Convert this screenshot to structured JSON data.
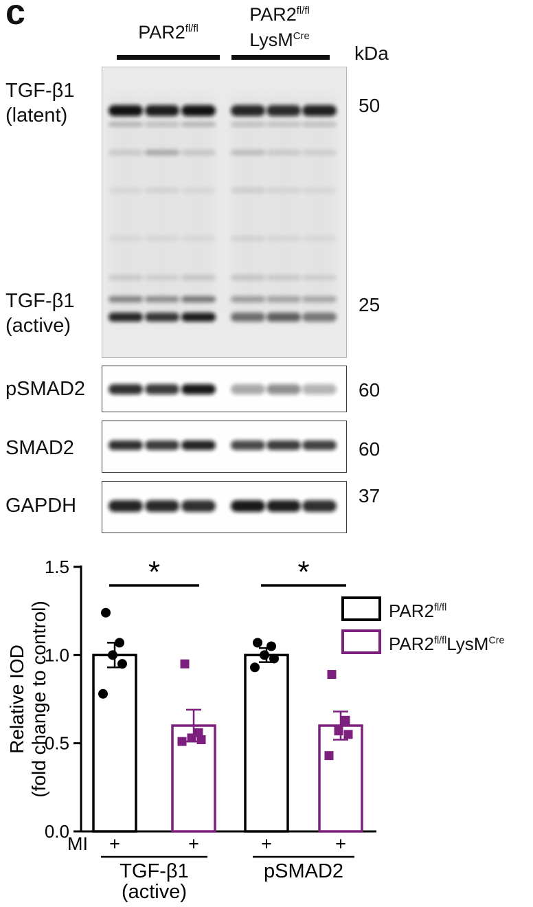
{
  "panel_label": "c",
  "blot_section": {
    "group_headers": [
      {
        "base": "PAR2",
        "sup": "fl/fl"
      },
      {
        "base": "PAR2",
        "sup": "fl/fl",
        "base2": "LysM",
        "sup2": "Cre"
      }
    ],
    "unit_label": "kDa",
    "row_labels": {
      "latent_line1": "TGF-β1",
      "latent_line2": "(latent)",
      "active_line1": "TGF-β1",
      "active_line2": "(active)",
      "psmad2": "pSMAD2",
      "smad2": "SMAD2",
      "gapdh": "GAPDH"
    },
    "molecular_weights": {
      "latent": "50",
      "active": "25",
      "psmad2": "60",
      "smad2": "60",
      "gapdh": "37"
    },
    "lanes_per_group": 3
  },
  "blots": {
    "main": {
      "rows": [
        {
          "id": "latent-band",
          "intensities": [
            0.97,
            0.92,
            0.97,
            0.88,
            0.85,
            0.9
          ]
        },
        {
          "id": "latent-echo",
          "intensities": [
            0.25,
            0.2,
            0.25,
            0.2,
            0.18,
            0.2
          ]
        },
        {
          "id": "faint-1",
          "intensities": [
            0.12,
            0.28,
            0.14,
            0.18,
            0.12,
            0.1
          ]
        },
        {
          "id": "faint-2",
          "intensities": [
            0.06,
            0.08,
            0.06,
            0.1,
            0.07,
            0.06
          ]
        },
        {
          "id": "faint-3",
          "intensities": [
            0.05,
            0.06,
            0.05,
            0.08,
            0.06,
            0.05
          ]
        },
        {
          "id": "faint-4",
          "intensities": [
            0.12,
            0.1,
            0.14,
            0.15,
            0.12,
            0.1
          ]
        },
        {
          "id": "active-upper",
          "intensities": [
            0.45,
            0.4,
            0.5,
            0.33,
            0.3,
            0.28
          ]
        },
        {
          "id": "active-lower",
          "intensities": [
            0.88,
            0.8,
            0.92,
            0.55,
            0.62,
            0.5
          ]
        }
      ]
    },
    "psmad2": {
      "rows": [
        {
          "id": "psmad2-band",
          "intensities": [
            0.85,
            0.8,
            0.95,
            0.35,
            0.45,
            0.3
          ]
        }
      ]
    },
    "smad2": {
      "rows": [
        {
          "id": "smad2-band",
          "intensities": [
            0.85,
            0.8,
            0.9,
            0.75,
            0.8,
            0.78
          ]
        }
      ]
    },
    "gapdh": {
      "rows": [
        {
          "id": "gapdh-band",
          "intensities": [
            0.9,
            0.88,
            0.85,
            0.95,
            0.92,
            0.85
          ]
        }
      ]
    }
  },
  "chart_data": {
    "type": "bar",
    "title": "",
    "ylabel_line1": "Relative IOD",
    "ylabel_line2": "(fold change to control)",
    "ylim": [
      0,
      1.5
    ],
    "yticks": [
      "0.0",
      "0.5",
      "1.0",
      "1.5"
    ],
    "x_axis_label": "MI",
    "grid": false,
    "legend_position": "right",
    "series": [
      {
        "key": "par2-flfl",
        "name": "PAR2 fl/fl",
        "color": "#000000",
        "marker": "circle"
      },
      {
        "key": "par2-flfl-lysmcre",
        "name": "PAR2 fl/fl LysM Cre",
        "color": "#7d1f7d",
        "marker": "square"
      }
    ],
    "groups": [
      {
        "label": "TGF-β1",
        "label2": "(active)",
        "significance": "*",
        "bars": [
          {
            "series": 0,
            "mi": "+",
            "value": 1.0,
            "error": 0.07,
            "points": [
              1.24,
              1.07,
              1.0,
              0.95,
              0.78
            ]
          },
          {
            "series": 1,
            "mi": "+",
            "value": 0.6,
            "error": 0.09,
            "points": [
              0.95,
              0.56,
              0.53,
              0.52,
              0.51
            ]
          }
        ]
      },
      {
        "label": "pSMAD2",
        "label2": "",
        "significance": "*",
        "bars": [
          {
            "series": 0,
            "mi": "+",
            "value": 1.0,
            "error": 0.04,
            "points": [
              1.07,
              1.05,
              1.0,
              0.98,
              0.93
            ]
          },
          {
            "series": 1,
            "mi": "+",
            "value": 0.6,
            "error": 0.08,
            "points": [
              0.89,
              0.63,
              0.57,
              0.55,
              0.43
            ]
          }
        ]
      }
    ],
    "legend": [
      {
        "base": "PAR2",
        "sup": "fl/fl",
        "color": "#000000"
      },
      {
        "base": "PAR2",
        "sup": "fl/fl",
        "base2": "LysM",
        "sup2": "Cre",
        "color": "#7d1f7d"
      }
    ]
  }
}
